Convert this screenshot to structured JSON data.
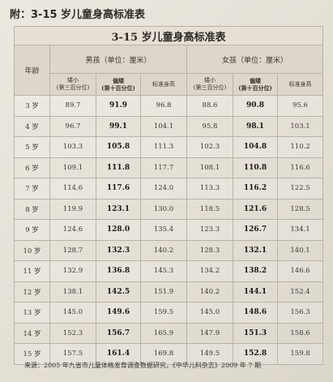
{
  "doc_title": "附：3-15 岁儿童身高标准表",
  "table": {
    "title": "3-15 岁儿童身高标准表",
    "age_header": "年龄",
    "boys_header": "男孩（单位：厘米）",
    "girls_header": "女孩（单位：厘米）",
    "col_short_l1": "矮小",
    "col_short_l2": "(第三百分位)",
    "col_low_l1": "偏矮",
    "col_low_l2": "(第十百分位)",
    "col_standard": "标准身高",
    "rows": [
      {
        "age": "3 岁",
        "b_short": "89.7",
        "b_low": "91.9",
        "b_std": "96.8",
        "g_short": "88.6",
        "g_low": "90.8",
        "g_std": "95.6"
      },
      {
        "age": "4 岁",
        "b_short": "96.7",
        "b_low": "99.1",
        "b_std": "104.1",
        "g_short": "95.8",
        "g_low": "98.1",
        "g_std": "103.1"
      },
      {
        "age": "5 岁",
        "b_short": "103.3",
        "b_low": "105.8",
        "b_std": "111.3",
        "g_short": "102.3",
        "g_low": "104.8",
        "g_std": "110.2"
      },
      {
        "age": "6 岁",
        "b_short": "109.1",
        "b_low": "111.8",
        "b_std": "117.7",
        "g_short": "108.1",
        "g_low": "110.8",
        "g_std": "116.6"
      },
      {
        "age": "7 岁",
        "b_short": "114.6",
        "b_low": "117.6",
        "b_std": "124.0",
        "g_short": "113.3",
        "g_low": "116.2",
        "g_std": "122.5"
      },
      {
        "age": "8 岁",
        "b_short": "119.9",
        "b_low": "123.1",
        "b_std": "130.0",
        "g_short": "118.5",
        "g_low": "121.6",
        "g_std": "128.5"
      },
      {
        "age": "9 岁",
        "b_short": "124.6",
        "b_low": "128.0",
        "b_std": "135.4",
        "g_short": "123.3",
        "g_low": "126.7",
        "g_std": "134.1"
      },
      {
        "age": "10 岁",
        "b_short": "128.7",
        "b_low": "132.3",
        "b_std": "140.2",
        "g_short": "128.3",
        "g_low": "132.1",
        "g_std": "140.1"
      },
      {
        "age": "11 岁",
        "b_short": "132.9",
        "b_low": "136.8",
        "b_std": "145.3",
        "g_short": "134.2",
        "g_low": "138.2",
        "g_std": "146.6"
      },
      {
        "age": "12 岁",
        "b_short": "138.1",
        "b_low": "142.5",
        "b_std": "151.9",
        "g_short": "140.2",
        "g_low": "144.1",
        "g_std": "152.4"
      },
      {
        "age": "13 岁",
        "b_short": "145.0",
        "b_low": "149.6",
        "b_std": "159.5",
        "g_short": "145.0",
        "g_low": "148.6",
        "g_std": "156.3"
      },
      {
        "age": "14 岁",
        "b_short": "152.3",
        "b_low": "156.7",
        "b_std": "165.9",
        "g_short": "147.9",
        "g_low": "151.3",
        "g_std": "158.6"
      },
      {
        "age": "15 岁",
        "b_short": "157.5",
        "b_low": "161.4",
        "b_std": "169.8",
        "g_short": "149.5",
        "g_low": "152.8",
        "g_std": "159.8"
      }
    ]
  },
  "source": "来源：2005 年九省市儿童体格发育调查数据研究，《中华儿科杂志》2009 年 7 期"
}
